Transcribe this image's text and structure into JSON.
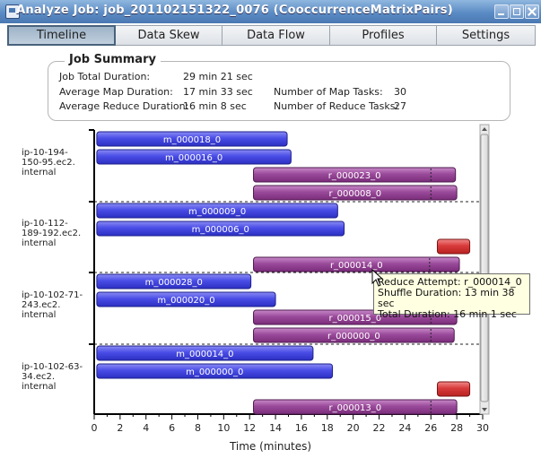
{
  "window": {
    "title": "Analyze Job: job_201102151322_0076 (CooccurrenceMatrixPairs)"
  },
  "tabs": [
    {
      "label": "Timeline",
      "active": true
    },
    {
      "label": "Data Skew"
    },
    {
      "label": "Data Flow"
    },
    {
      "label": "Profiles"
    },
    {
      "label": "Settings"
    }
  ],
  "summary": {
    "legend": "Job Summary",
    "job_total_label": "Job Total Duration:",
    "job_total_value": "29 min 21 sec",
    "avg_map_label": "Average Map Duration:",
    "avg_map_value": "17 min 33 sec",
    "avg_reduce_label": "Average Reduce Duration:",
    "avg_reduce_value": "16 min 8 sec",
    "num_map_label": "Number of Map Tasks:",
    "num_map_value": "30",
    "num_reduce_label": "Number of Reduce Tasks:",
    "num_reduce_value": "27"
  },
  "chart_data": {
    "type": "timeline",
    "xlabel": "Time (minutes)",
    "xlim": [
      0,
      30
    ],
    "xticks": [
      0,
      2,
      4,
      6,
      8,
      10,
      12,
      14,
      16,
      18,
      20,
      22,
      24,
      26,
      28,
      30
    ],
    "hosts": [
      {
        "name": "ip-10-194-150-95.ec2.internal",
        "label_lines": [
          "ip-10-194-",
          "150-95.ec2.",
          "internal"
        ]
      },
      {
        "name": "ip-10-112-189-192.ec2.internal",
        "label_lines": [
          "ip-10-112-",
          "189-192.ec2.",
          "internal"
        ]
      },
      {
        "name": "ip-10-102-71-243.ec2.internal",
        "label_lines": [
          "ip-10-102-71-",
          "243.ec2.",
          "internal"
        ]
      },
      {
        "name": "ip-10-102-63-34.ec2.internal",
        "label_lines": [
          "ip-10-102-63-",
          "34.ec2.",
          "internal"
        ]
      }
    ],
    "tasks": [
      {
        "host": 0,
        "slot": 0,
        "type": "map",
        "label": "m_000018_0",
        "start": 0.2,
        "end": 14.9
      },
      {
        "host": 0,
        "slot": 1,
        "type": "map",
        "label": "m_000016_0",
        "start": 0.2,
        "end": 15.2
      },
      {
        "host": 0,
        "slot": 2,
        "type": "reduce",
        "label": "r_000023_0",
        "start": 12.3,
        "end": 27.9,
        "shuffle_end": 26.0
      },
      {
        "host": 0,
        "slot": 3,
        "type": "reduce",
        "label": "r_000008_0",
        "start": 12.3,
        "end": 28.0,
        "shuffle_end": 26.0
      },
      {
        "host": 1,
        "slot": 0,
        "type": "map",
        "label": "m_000009_0",
        "start": 0.2,
        "end": 18.8
      },
      {
        "host": 1,
        "slot": 1,
        "type": "map",
        "label": "m_000006_0",
        "start": 0.2,
        "end": 19.3
      },
      {
        "host": 1,
        "slot": 2,
        "type": "failed",
        "label": "",
        "start": 26.5,
        "end": 29.0
      },
      {
        "host": 1,
        "slot": 3,
        "type": "reduce",
        "label": "r_000014_0",
        "start": 12.3,
        "end": 28.2,
        "shuffle_end": 25.9
      },
      {
        "host": 2,
        "slot": 0,
        "type": "map",
        "label": "m_000028_0",
        "start": 0.2,
        "end": 12.1
      },
      {
        "host": 2,
        "slot": 1,
        "type": "map",
        "label": "m_000020_0",
        "start": 0.2,
        "end": 14.0
      },
      {
        "host": 2,
        "slot": 2,
        "type": "reduce",
        "label": "r_000015_0",
        "start": 12.3,
        "end": 28.0,
        "shuffle_end": 26.0
      },
      {
        "host": 2,
        "slot": 3,
        "type": "reduce",
        "label": "r_000000_0",
        "start": 12.3,
        "end": 27.8,
        "shuffle_end": 26.0
      },
      {
        "host": 3,
        "slot": 0,
        "type": "map",
        "label": "m_000014_0",
        "start": 0.2,
        "end": 16.9
      },
      {
        "host": 3,
        "slot": 1,
        "type": "map",
        "label": "m_000000_0",
        "start": 0.2,
        "end": 18.4
      },
      {
        "host": 3,
        "slot": 2,
        "type": "failed",
        "label": "",
        "start": 26.5,
        "end": 29.0
      },
      {
        "host": 3,
        "slot": 3,
        "type": "reduce",
        "label": "r_000013_0",
        "start": 12.3,
        "end": 28.0,
        "shuffle_end": 26.0
      }
    ],
    "colors": {
      "map": "#3b3fd8",
      "reduce": "#8b3a8b",
      "failed": "#d63030"
    }
  },
  "tooltip": {
    "line1": "Reduce Attempt:  r_000014_0",
    "line2": "Shuffle Duration:  13 min 38 sec",
    "line3": "Total Duration:  16 min 1 sec"
  }
}
